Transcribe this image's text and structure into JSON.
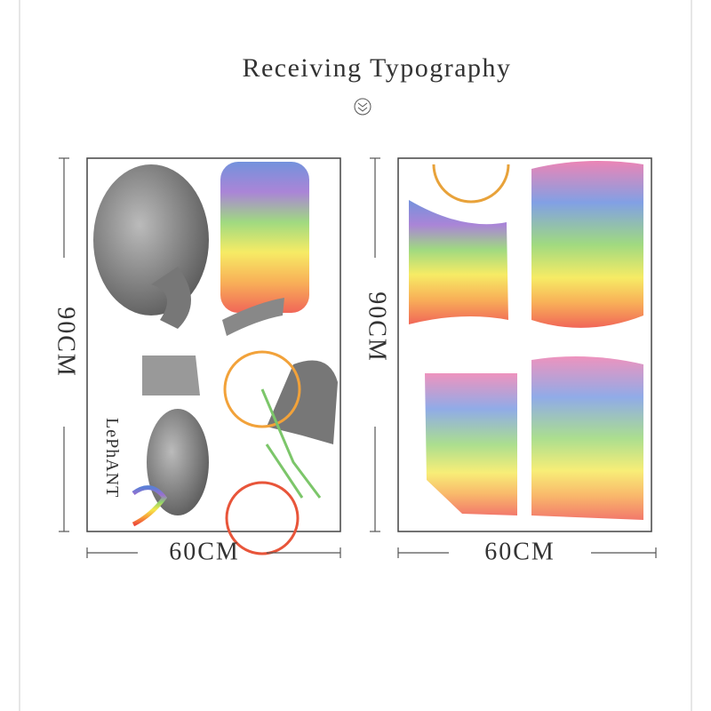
{
  "header": {
    "title": "Receiving Typography"
  },
  "panels": [
    {
      "height_label": "90CM",
      "width_label": "60CM",
      "sticker_text": "LePhANT"
    },
    {
      "height_label": "90CM",
      "width_label": "60CM"
    }
  ]
}
